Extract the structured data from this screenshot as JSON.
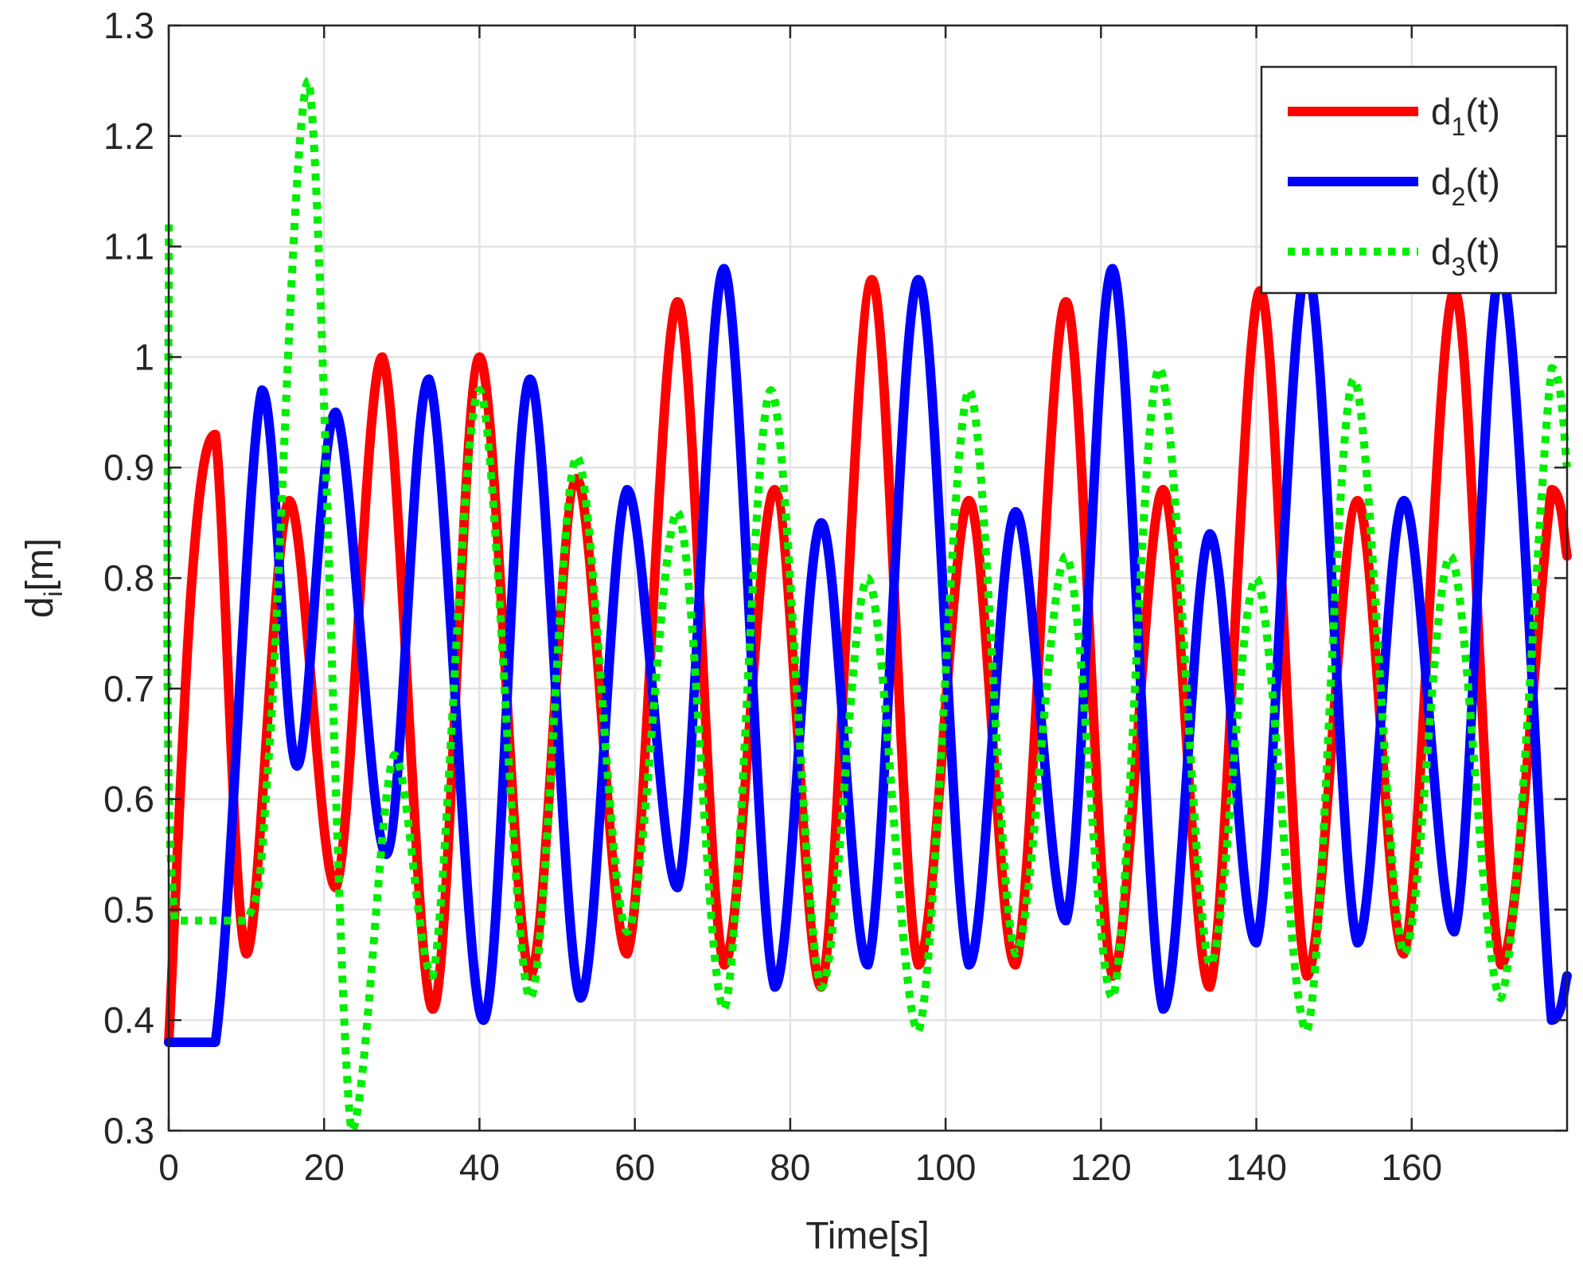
{
  "chart_data": {
    "type": "line",
    "title": "",
    "xlabel": "Time[s]",
    "ylabel": {
      "base": "d",
      "sub": "i",
      "suffix": "[m]"
    },
    "xlim": [
      0,
      180
    ],
    "ylim": [
      0.3,
      1.3
    ],
    "xticks": [
      0,
      20,
      40,
      60,
      80,
      100,
      120,
      140,
      160
    ],
    "yticks": [
      0.3,
      0.4,
      0.5,
      0.6,
      0.7,
      0.8,
      0.9,
      1,
      1.1,
      1.2,
      1.3
    ],
    "grid": true,
    "legend_position": "top-right",
    "series": [
      {
        "name": "d1(t)",
        "label": {
          "base": "d",
          "sub": "1",
          "suffix": "(t)"
        },
        "color": "#ff0000",
        "style": "solid",
        "points": [
          [
            0,
            0.38
          ],
          [
            3,
            0.8
          ],
          [
            6,
            0.93
          ],
          [
            10,
            0.46
          ],
          [
            15.5,
            0.87
          ],
          [
            21.5,
            0.52
          ],
          [
            27.5,
            1.0
          ],
          [
            34,
            0.41
          ],
          [
            40,
            1.0
          ],
          [
            46.5,
            0.44
          ],
          [
            52.5,
            0.89
          ],
          [
            59,
            0.46
          ],
          [
            65.5,
            1.05
          ],
          [
            71.5,
            0.45
          ],
          [
            78,
            0.88
          ],
          [
            84,
            0.43
          ],
          [
            90.5,
            1.07
          ],
          [
            96.5,
            0.45
          ],
          [
            103,
            0.87
          ],
          [
            109,
            0.45
          ],
          [
            115.5,
            1.05
          ],
          [
            121.5,
            0.44
          ],
          [
            128,
            0.88
          ],
          [
            134,
            0.43
          ],
          [
            140.5,
            1.06
          ],
          [
            146.5,
            0.44
          ],
          [
            153,
            0.87
          ],
          [
            159,
            0.46
          ],
          [
            165.5,
            1.06
          ],
          [
            171.5,
            0.45
          ],
          [
            178,
            0.88
          ],
          [
            180,
            0.82
          ]
        ]
      },
      {
        "name": "d2(t)",
        "label": {
          "base": "d",
          "sub": "2",
          "suffix": "(t)"
        },
        "color": "#0000ff",
        "style": "solid",
        "points": [
          [
            0,
            0.38
          ],
          [
            6,
            0.38
          ],
          [
            12,
            0.97
          ],
          [
            16.5,
            0.63
          ],
          [
            21.5,
            0.95
          ],
          [
            28,
            0.55
          ],
          [
            33.5,
            0.98
          ],
          [
            40.5,
            0.4
          ],
          [
            46.5,
            0.98
          ],
          [
            53,
            0.42
          ],
          [
            59,
            0.88
          ],
          [
            65.5,
            0.52
          ],
          [
            71.5,
            1.08
          ],
          [
            78,
            0.43
          ],
          [
            84,
            0.85
          ],
          [
            90,
            0.45
          ],
          [
            96.5,
            1.07
          ],
          [
            103,
            0.45
          ],
          [
            109,
            0.86
          ],
          [
            115.5,
            0.49
          ],
          [
            121.5,
            1.08
          ],
          [
            128,
            0.41
          ],
          [
            134,
            0.84
          ],
          [
            140,
            0.47
          ],
          [
            146.5,
            1.08
          ],
          [
            153,
            0.47
          ],
          [
            159,
            0.87
          ],
          [
            165.5,
            0.48
          ],
          [
            171.5,
            1.08
          ],
          [
            178,
            0.4
          ],
          [
            180,
            0.44
          ]
        ]
      },
      {
        "name": "d3(t)",
        "label": {
          "base": "d",
          "sub": "3",
          "suffix": "(t)"
        },
        "color": "#00ee00",
        "style": "dotted",
        "points": [
          [
            0,
            1.12
          ],
          [
            0.8,
            0.49
          ],
          [
            10,
            0.49
          ],
          [
            13,
            0.65
          ],
          [
            18,
            1.25
          ],
          [
            23.5,
            0.3
          ],
          [
            29,
            0.64
          ],
          [
            34,
            0.44
          ],
          [
            40,
            0.97
          ],
          [
            46.5,
            0.42
          ],
          [
            52.5,
            0.91
          ],
          [
            59,
            0.48
          ],
          [
            65.5,
            0.86
          ],
          [
            71.5,
            0.41
          ],
          [
            77.5,
            0.97
          ],
          [
            84,
            0.43
          ],
          [
            90,
            0.8
          ],
          [
            96.5,
            0.39
          ],
          [
            103,
            0.97
          ],
          [
            109,
            0.46
          ],
          [
            115.5,
            0.82
          ],
          [
            121.5,
            0.42
          ],
          [
            127.5,
            0.99
          ],
          [
            134,
            0.45
          ],
          [
            140,
            0.8
          ],
          [
            146.5,
            0.39
          ],
          [
            152.5,
            0.98
          ],
          [
            159,
            0.46
          ],
          [
            165,
            0.82
          ],
          [
            171.5,
            0.42
          ],
          [
            178,
            0.99
          ],
          [
            180,
            0.9
          ]
        ]
      }
    ]
  }
}
